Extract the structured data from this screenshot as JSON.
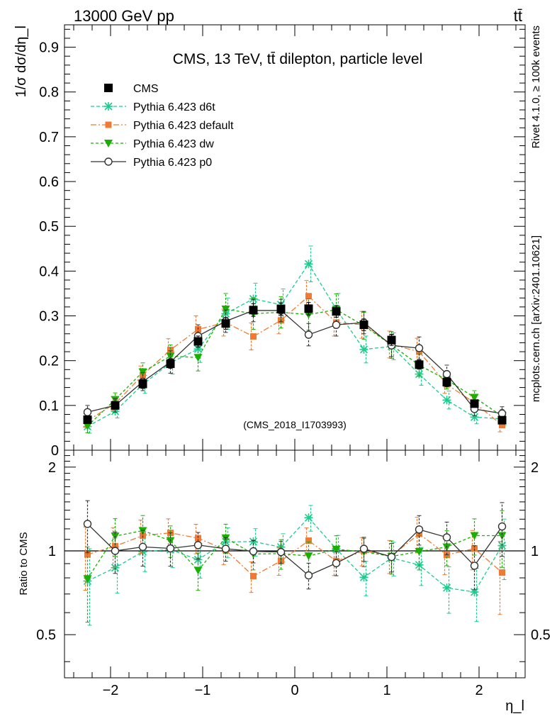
{
  "header": {
    "energy": "13000 GeV pp",
    "process": "tt̄",
    "side_top": "Rivet 4.1.0, ≥ 100k events",
    "side_bottom": "mcplots.cern.ch [arXiv:2401.10621]"
  },
  "chart_data": {
    "type": "scatter",
    "title": "CMS, 13 TeV, tt̄ dilepton, particle level",
    "watermark": "(CMS_2018_I1703993)",
    "ylabel": "1/σ dσ/dη_l",
    "xlabel": "η_l",
    "ratio_label": "Ratio to CMS",
    "xlim": [
      -2.5,
      2.5
    ],
    "ylim": [
      0,
      0.95
    ],
    "ratio_ylim": [
      0.35,
      2.3
    ],
    "x_ticks": [
      "−2",
      "−1",
      "0",
      "1",
      "2"
    ],
    "y_ticks": [
      "0",
      "0.1",
      "0.2",
      "0.3",
      "0.4",
      "0.5",
      "0.6",
      "0.7",
      "0.8",
      "0.9"
    ],
    "ratio_ticks": [
      "0.5",
      "1",
      "2"
    ],
    "x": [
      -2.25,
      -1.95,
      -1.65,
      -1.35,
      -1.05,
      -0.75,
      -0.45,
      -0.15,
      0.15,
      0.45,
      0.75,
      1.05,
      1.35,
      1.65,
      1.95,
      2.25
    ],
    "series": [
      {
        "name": "CMS",
        "color": "#000000",
        "values": [
          0.068,
          0.1,
          0.148,
          0.193,
          0.243,
          0.283,
          0.313,
          0.315,
          0.316,
          0.31,
          0.28,
          0.246,
          0.191,
          0.152,
          0.104,
          0.067
        ],
        "errors": [
          0.008,
          0.008,
          0.01,
          0.01,
          0.012,
          0.013,
          0.014,
          0.014,
          0.014,
          0.013,
          0.013,
          0.012,
          0.01,
          0.01,
          0.008,
          0.008
        ]
      },
      {
        "name": "Pythia 6.423 d6t",
        "color": "#1bcc8c",
        "values": [
          0.053,
          0.087,
          0.147,
          0.195,
          0.226,
          0.305,
          0.338,
          0.325,
          0.416,
          0.315,
          0.225,
          0.232,
          0.17,
          0.112,
          0.074,
          0.07
        ],
        "errors": [
          0.015,
          0.015,
          0.02,
          0.025,
          0.03,
          0.035,
          0.035,
          0.035,
          0.04,
          0.035,
          0.03,
          0.03,
          0.025,
          0.02,
          0.015,
          0.015
        ]
      },
      {
        "name": "Pythia 6.423 default",
        "color": "#f07a33",
        "values": [
          0.066,
          0.104,
          0.168,
          0.224,
          0.27,
          0.285,
          0.254,
          0.29,
          0.344,
          0.285,
          0.28,
          0.236,
          0.22,
          0.147,
          0.106,
          0.056
        ],
        "errors": [
          0.015,
          0.015,
          0.02,
          0.025,
          0.03,
          0.03,
          0.03,
          0.03,
          0.035,
          0.03,
          0.03,
          0.03,
          0.03,
          0.02,
          0.015,
          0.015
        ]
      },
      {
        "name": "Pythia 6.423 dw",
        "color": "#19b000",
        "values": [
          0.054,
          0.113,
          0.175,
          0.21,
          0.207,
          0.315,
          0.305,
          0.308,
          0.303,
          0.314,
          0.278,
          0.235,
          0.19,
          0.157,
          0.118,
          0.076
        ],
        "errors": [
          0.015,
          0.015,
          0.02,
          0.025,
          0.03,
          0.035,
          0.035,
          0.035,
          0.035,
          0.035,
          0.03,
          0.03,
          0.025,
          0.02,
          0.015,
          0.015
        ]
      },
      {
        "name": "Pythia 6.423 p0",
        "color": "#333333",
        "values": [
          0.085,
          0.1,
          0.153,
          0.197,
          0.255,
          0.288,
          0.312,
          0.312,
          0.258,
          0.28,
          0.285,
          0.234,
          0.228,
          0.17,
          0.092,
          0.082
        ],
        "errors": [
          0.015,
          0.015,
          0.02,
          0.025,
          0.025,
          0.025,
          0.025,
          0.025,
          0.025,
          0.025,
          0.025,
          0.025,
          0.025,
          0.02,
          0.015,
          0.015
        ]
      }
    ]
  }
}
